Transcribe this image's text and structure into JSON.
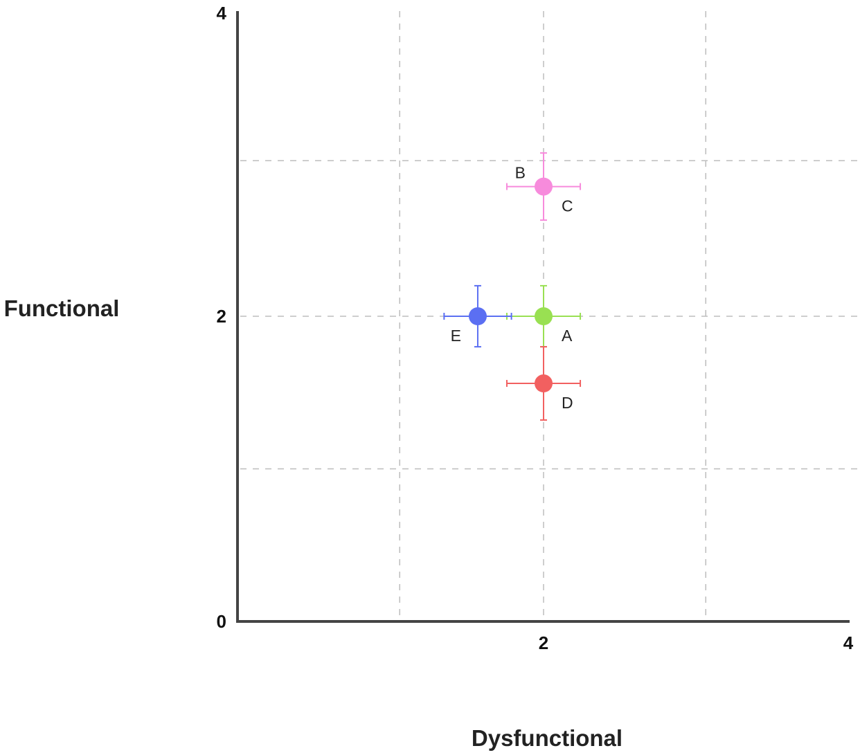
{
  "chart_data": {
    "type": "scatter",
    "title": "",
    "xlabel": "Dysfunctional",
    "ylabel": "Functional",
    "xlim": [
      0,
      4
    ],
    "ylim": [
      0,
      4
    ],
    "x_ticks": [
      {
        "value": 2,
        "label": "2"
      },
      {
        "value": 4,
        "label": "4"
      }
    ],
    "y_ticks": [
      {
        "value": 0,
        "label": "0"
      },
      {
        "value": 2,
        "label": "2"
      },
      {
        "value": 4,
        "label": "4"
      }
    ],
    "grid": true,
    "grid_style": "dashed",
    "grid_values": {
      "x": [
        1.06,
        2.0,
        3.06
      ],
      "y": [
        1.0,
        2.0,
        3.02
      ]
    },
    "points": [
      {
        "label": "A",
        "x": 2.0,
        "y": 2.0,
        "x_err": 0.24,
        "y_err": 0.2,
        "color": "#99e052",
        "label_pos": "bottom-right"
      },
      {
        "label": "B",
        "x": 2.0,
        "y": 2.85,
        "x_err": 0.24,
        "y_err": 0.22,
        "color": "#f78bdc",
        "label_pos": "top-left"
      },
      {
        "label": "C",
        "x": 2.0,
        "y": 2.85,
        "x_err": 0.24,
        "y_err": 0.22,
        "color": "#f78bdc",
        "label_pos": "bottom-right"
      },
      {
        "label": "D",
        "x": 2.0,
        "y": 1.56,
        "x_err": 0.24,
        "y_err": 0.24,
        "color": "#f26060",
        "label_pos": "bottom-right"
      },
      {
        "label": "E",
        "x": 1.57,
        "y": 2.0,
        "x_err": 0.22,
        "y_err": 0.2,
        "color": "#5b6ff2",
        "label_pos": "bottom-left"
      }
    ]
  }
}
